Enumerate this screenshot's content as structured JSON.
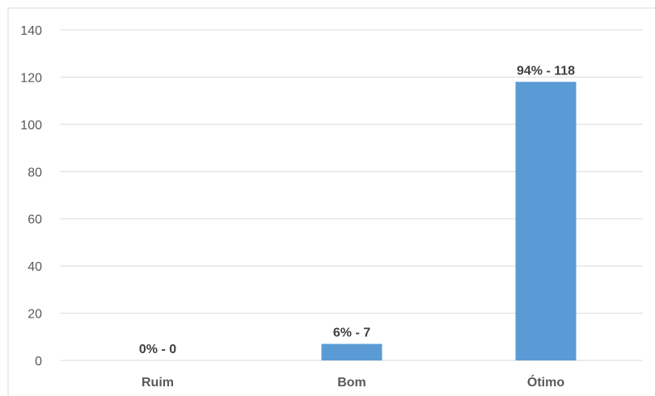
{
  "chart_data": {
    "type": "bar",
    "title": "",
    "xlabel": "",
    "ylabel": "",
    "categories": [
      "Ruim",
      "Bom",
      "Ótimo"
    ],
    "values": [
      0,
      7,
      118
    ],
    "data_labels": [
      "0% - 0",
      "6% - 7",
      "94% - 118"
    ],
    "ylim": [
      0,
      140
    ],
    "yticks": [
      "0",
      "20",
      "40",
      "60",
      "80",
      "100",
      "120",
      "140"
    ],
    "grid": true,
    "legend": "none",
    "colors": {
      "bar": "#5b9bd5",
      "grid": "#d9d9d9",
      "frame": "#d9d9d9"
    }
  }
}
